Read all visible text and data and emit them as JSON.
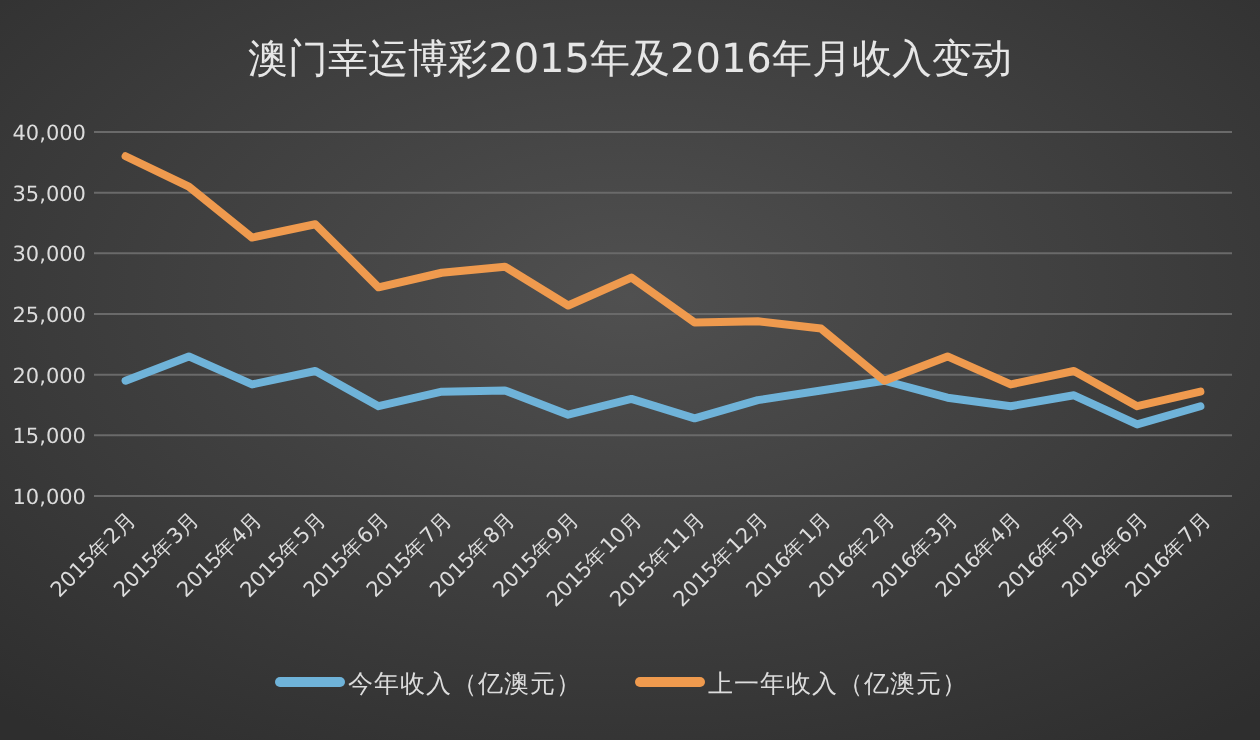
{
  "chart_data": {
    "type": "line",
    "title": "澳门幸运博彩2015年及2016年月收入变动",
    "categories": [
      "2015年2月",
      "2015年3月",
      "2015年4月",
      "2015年5月",
      "2015年6月",
      "2015年7月",
      "2015年8月",
      "2015年9月",
      "2015年10月",
      "2015年11月",
      "2015年12月",
      "2016年1月",
      "2016年2月",
      "2016年3月",
      "2016年4月",
      "2016年5月",
      "2016年6月",
      "2016年7月"
    ],
    "series": [
      {
        "name": "今年收入（亿澳元）",
        "color": "#6fb3d9",
        "values": [
          19500,
          21500,
          19200,
          20300,
          17400,
          18600,
          18700,
          16700,
          18000,
          16400,
          17900,
          18700,
          19500,
          18100,
          17400,
          18300,
          15900,
          17400
        ]
      },
      {
        "name": "上一年收入（亿澳元）",
        "color": "#ef9a4e",
        "values": [
          38000,
          35500,
          31300,
          32400,
          27200,
          28400,
          28900,
          25700,
          28000,
          24300,
          24400,
          23800,
          19500,
          21500,
          19200,
          20300,
          17400,
          18600
        ]
      }
    ],
    "ylim": [
      10000,
      40000
    ],
    "yticks": [
      {
        "value": 10000,
        "label": "10,000"
      },
      {
        "value": 15000,
        "label": "15,000"
      },
      {
        "value": 20000,
        "label": "20,000"
      },
      {
        "value": 25000,
        "label": "25,000"
      },
      {
        "value": 30000,
        "label": "30,000"
      },
      {
        "value": 35000,
        "label": "35,000"
      },
      {
        "value": 40000,
        "label": "40,000"
      }
    ],
    "grid": "y",
    "legend": "bottom",
    "marker": "none",
    "line_style": "solid"
  }
}
